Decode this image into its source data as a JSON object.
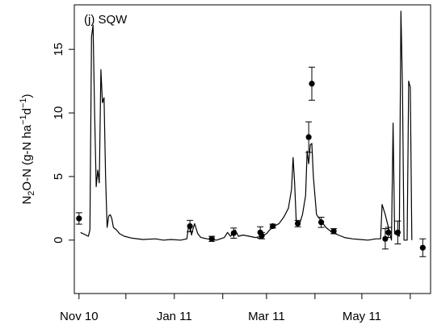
{
  "chart_data": {
    "type": "line",
    "panel_label": "(j) SQW",
    "ylabel": {
      "prefix": "N",
      "sub1": "2",
      "mid": "O-N (g-N ha",
      "sup1": "−1",
      "mid2": "d",
      "sup2": "−1",
      "suffix": ")"
    },
    "xlabel": "",
    "x_ticks": [
      {
        "label": "Nov 10",
        "date": "2010-11-01"
      },
      {
        "label": "Jan 11",
        "date": "2011-01-01"
      },
      {
        "label": "Mar 11",
        "date": "2011-03-01"
      },
      {
        "label": "May 11",
        "date": "2011-05-01"
      }
    ],
    "x_minor_ticks": [
      "2010-12-01",
      "2011-02-01",
      "2011-04-01",
      "2011-06-01"
    ],
    "y_ticks": [
      0,
      5,
      10,
      15
    ],
    "ylim": [
      -4.2,
      18.5
    ],
    "xlim": [
      "2010-10-29",
      "2011-06-14"
    ],
    "grid": false,
    "series": [
      {
        "kind": "line",
        "color": "#000000",
        "points": [
          [
            "2010-11-02",
            0.6
          ],
          [
            "2010-11-07",
            0.3
          ],
          [
            "2010-11-08",
            0.8
          ],
          [
            "2010-11-09",
            16.0
          ],
          [
            "2010-11-10",
            16.9
          ],
          [
            "2010-11-11",
            10.0
          ],
          [
            "2010-11-12",
            4.2
          ],
          [
            "2010-11-13",
            5.5
          ],
          [
            "2010-11-14",
            4.5
          ],
          [
            "2010-11-15",
            13.4
          ],
          [
            "2010-11-16",
            10.8
          ],
          [
            "2010-11-17",
            11.2
          ],
          [
            "2010-11-18",
            5.0
          ],
          [
            "2010-11-19",
            1.0
          ],
          [
            "2010-11-20",
            1.9
          ],
          [
            "2010-11-21",
            2.0
          ],
          [
            "2010-11-22",
            1.7
          ],
          [
            "2010-11-23",
            1.0
          ],
          [
            "2010-11-25",
            0.8
          ],
          [
            "2010-11-27",
            0.5
          ],
          [
            "2010-11-30",
            0.3
          ],
          [
            "2010-12-05",
            0.15
          ],
          [
            "2010-12-12",
            0.05
          ],
          [
            "2010-12-20",
            0.1
          ],
          [
            "2010-12-25",
            0.0
          ],
          [
            "2010-12-30",
            0.05
          ],
          [
            "2011-01-05",
            0.0
          ],
          [
            "2011-01-09",
            0.1
          ],
          [
            "2011-01-10",
            1.0
          ],
          [
            "2011-01-11",
            1.2
          ],
          [
            "2011-01-12",
            0.4
          ],
          [
            "2011-01-13",
            0.9
          ],
          [
            "2011-01-14",
            1.3
          ],
          [
            "2011-01-16",
            0.5
          ],
          [
            "2011-01-18",
            0.2
          ],
          [
            "2011-01-22",
            0.1
          ],
          [
            "2011-01-28",
            0.0
          ],
          [
            "2011-02-02",
            0.2
          ],
          [
            "2011-02-04",
            0.6
          ],
          [
            "2011-02-06",
            0.3
          ],
          [
            "2011-02-09",
            0.8
          ],
          [
            "2011-02-11",
            0.3
          ],
          [
            "2011-02-14",
            0.4
          ],
          [
            "2011-02-18",
            0.3
          ],
          [
            "2011-02-22",
            0.2
          ],
          [
            "2011-02-26",
            0.3
          ],
          [
            "2011-03-01",
            0.5
          ],
          [
            "2011-03-03",
            0.8
          ],
          [
            "2011-03-06",
            1.1
          ],
          [
            "2011-03-09",
            1.3
          ],
          [
            "2011-03-12",
            1.8
          ],
          [
            "2011-03-15",
            2.5
          ],
          [
            "2011-03-17",
            4.0
          ],
          [
            "2011-03-18",
            6.5
          ],
          [
            "2011-03-19",
            4.5
          ],
          [
            "2011-03-20",
            1.5
          ],
          [
            "2011-03-22",
            1.2
          ],
          [
            "2011-03-24",
            2.0
          ],
          [
            "2011-03-26",
            3.5
          ],
          [
            "2011-03-27",
            7.0
          ],
          [
            "2011-03-28",
            6.0
          ],
          [
            "2011-03-29",
            7.5
          ],
          [
            "2011-03-30",
            7.6
          ],
          [
            "2011-03-31",
            5.0
          ],
          [
            "2011-04-02",
            2.0
          ],
          [
            "2011-04-05",
            1.5
          ],
          [
            "2011-04-08",
            1.0
          ],
          [
            "2011-04-12",
            0.6
          ],
          [
            "2011-04-16",
            0.4
          ],
          [
            "2011-04-20",
            0.2
          ],
          [
            "2011-04-25",
            0.1
          ],
          [
            "2011-04-30",
            0.05
          ],
          [
            "2011-05-05",
            0.0
          ],
          [
            "2011-05-10",
            0.1
          ],
          [
            "2011-05-13",
            0.1
          ],
          [
            "2011-05-14",
            2.8
          ],
          [
            "2011-05-16",
            2.0
          ],
          [
            "2011-05-18",
            1.0
          ],
          [
            "2011-05-20",
            0.0
          ],
          [
            "2011-05-21",
            9.2
          ],
          [
            "2011-05-22",
            0.5
          ],
          [
            "2011-05-25",
            0.3
          ],
          [
            "2011-05-26",
            18.0
          ],
          [
            "2011-05-27",
            12.0
          ],
          [
            "2011-05-28",
            0.0
          ],
          [
            "2011-05-29",
            0.0
          ],
          [
            "2011-05-30",
            0.0
          ],
          [
            "2011-05-31",
            12.5
          ],
          [
            "2011-06-01",
            12.0
          ],
          [
            "2011-06-02",
            0.0
          ]
        ]
      },
      {
        "kind": "points",
        "color": "#000000",
        "points": [
          {
            "date": "2010-11-01",
            "y": 1.7,
            "err": 0.45
          },
          {
            "date": "2011-01-11",
            "y": 1.1,
            "err": 0.45
          },
          {
            "date": "2011-01-25",
            "y": 0.1,
            "err": 0.2
          },
          {
            "date": "2011-02-08",
            "y": 0.55,
            "err": 0.4
          },
          {
            "date": "2011-02-25",
            "y": 0.6,
            "err": 0.45
          },
          {
            "date": "2011-02-26",
            "y": 0.35,
            "err": 0.25
          },
          {
            "date": "2011-03-05",
            "y": 1.1,
            "err": 0.15
          },
          {
            "date": "2011-03-21",
            "y": 1.3,
            "err": 0.25
          },
          {
            "date": "2011-03-28",
            "y": 8.1,
            "err": 1.2
          },
          {
            "date": "2011-03-30",
            "y": 12.3,
            "err": 1.3
          },
          {
            "date": "2011-04-05",
            "y": 1.4,
            "err": 0.4
          },
          {
            "date": "2011-04-13",
            "y": 0.7,
            "err": 0.2
          },
          {
            "date": "2011-05-16",
            "y": 0.1,
            "err": 0.8
          },
          {
            "date": "2011-05-18",
            "y": 0.6,
            "err": 0.4
          },
          {
            "date": "2011-05-24",
            "y": 0.6,
            "err": 0.9
          },
          {
            "date": "2011-06-09",
            "y": -0.6,
            "err": 0.7
          }
        ]
      }
    ]
  }
}
